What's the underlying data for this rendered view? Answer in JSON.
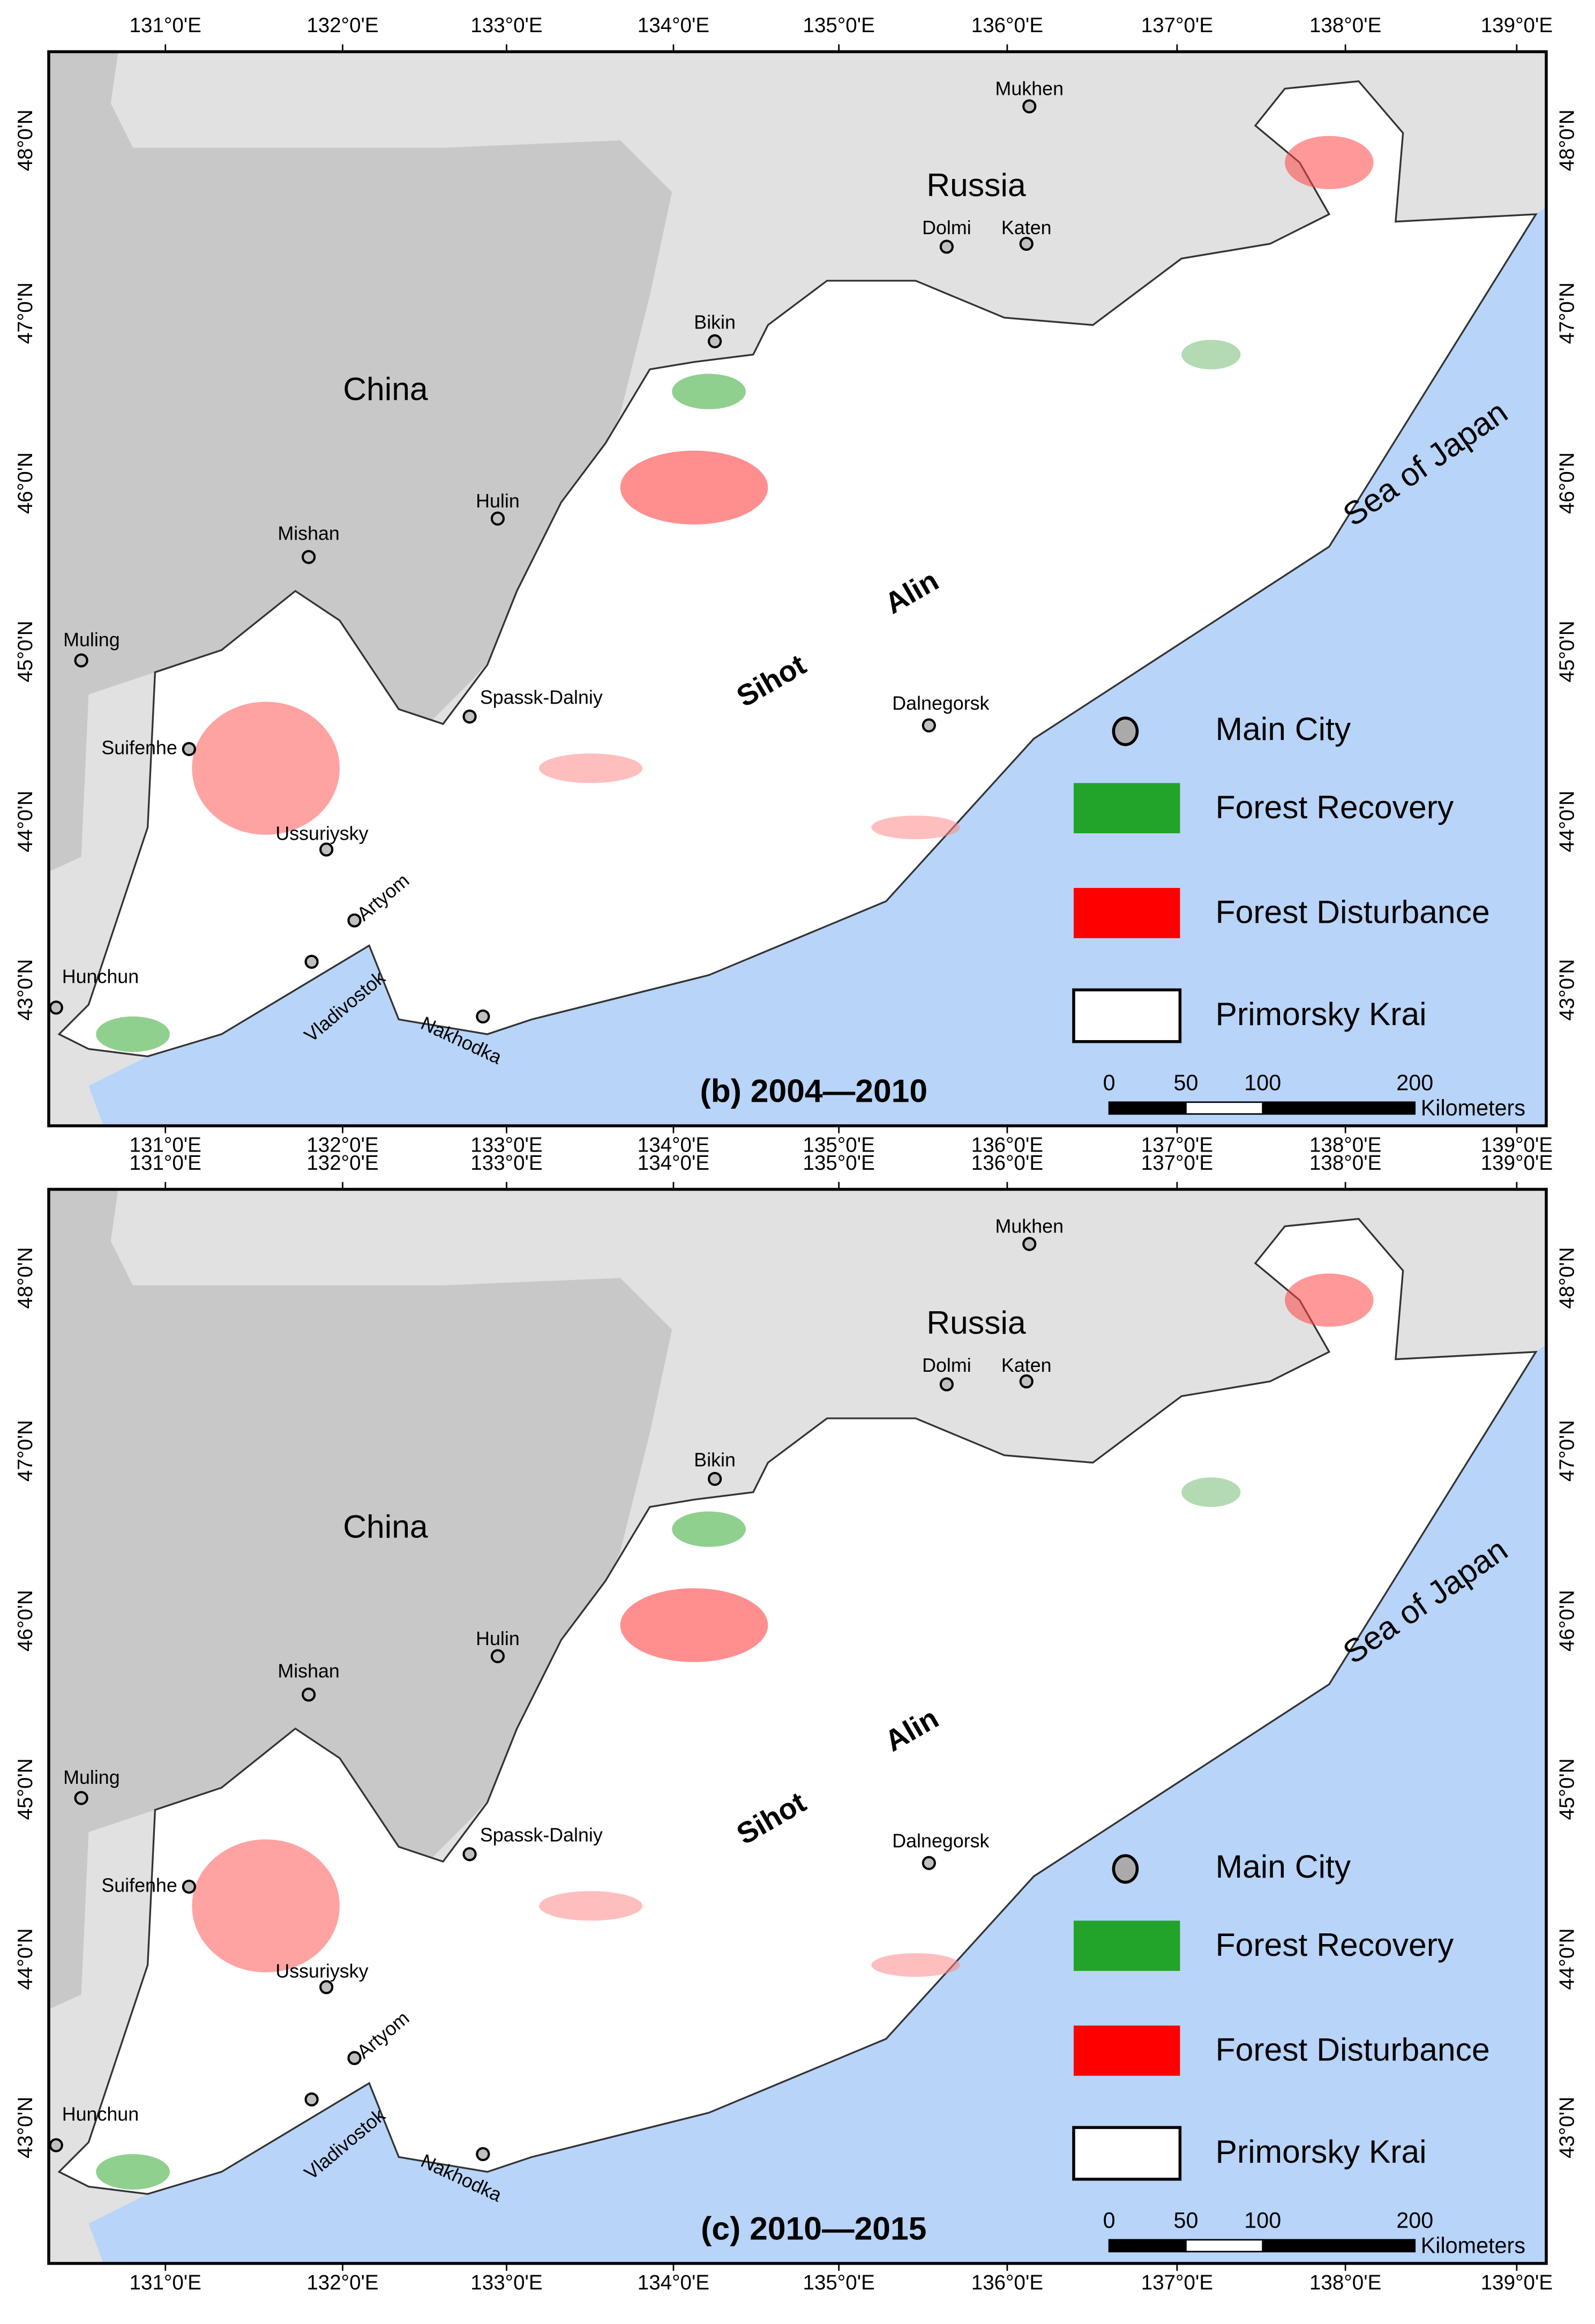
{
  "panels": [
    {
      "label": "(b) 2004—2010"
    },
    {
      "label": "(c) 2010—2015"
    }
  ],
  "lon_ticks": [
    "131°0'E",
    "132°0'E",
    "133°0'E",
    "134°0'E",
    "135°0'E",
    "136°0'E",
    "137°0'E",
    "138°0'E",
    "139°0'E"
  ],
  "lat_ticks": [
    "48°0'N",
    "47°0'N",
    "46°0'N",
    "45°0'N",
    "44°0'N",
    "43°0'N"
  ],
  "regions": [
    "Russia",
    "China",
    "Sea of Japan",
    "Sihot",
    "Alin"
  ],
  "places": [
    "Mukhen",
    "Dolmi",
    "Katen",
    "Bikin",
    "Hulin",
    "Mishan",
    "Muling",
    "Suifenhe",
    "Spassk-Dalniy",
    "Dalnegorsk",
    "Ussuriysky",
    "Artyom",
    "Hunchun",
    "Vladivostok",
    "Nakhodka"
  ],
  "legend": [
    "Main City",
    "Forest Recovery",
    "Forest Disturbance",
    "Primorsky Krai"
  ],
  "scale": {
    "ticks": [
      "0",
      "50",
      "100",
      "200"
    ],
    "unit": "Kilometers"
  }
}
